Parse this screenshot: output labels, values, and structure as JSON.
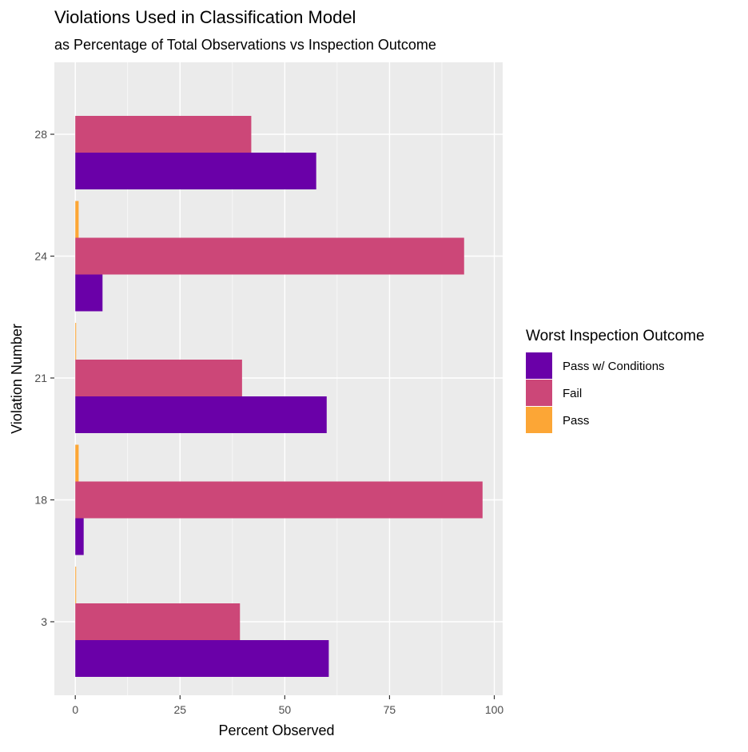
{
  "chart_data": {
    "type": "bar",
    "orientation": "horizontal",
    "title": "Violations Used in Classification Model",
    "subtitle": "as Percentage of Total Observations vs Inspection Outcome",
    "xlabel": "Percent Observed",
    "ylabel": "Violation Number",
    "categories": [
      "3",
      "18",
      "21",
      "24",
      "28"
    ],
    "xlim": [
      -5,
      102
    ],
    "x_ticks": [
      "0",
      "25",
      "50",
      "75",
      "100"
    ],
    "grid": true,
    "legend_position": "right",
    "legend_title": "Worst Inspection Outcome",
    "series": [
      {
        "name": "Pass w/ Conditions",
        "color": "#6a00a8",
        "values": [
          60.5,
          2,
          60,
          6.5,
          57.5
        ]
      },
      {
        "name": "Fail",
        "color": "#cc4778",
        "values": [
          39.3,
          97.2,
          39.8,
          92.8,
          42
        ]
      },
      {
        "name": "Pass",
        "color": "#fca636",
        "values": [
          0.2,
          0.8,
          0.2,
          0.8,
          0
        ]
      }
    ]
  }
}
